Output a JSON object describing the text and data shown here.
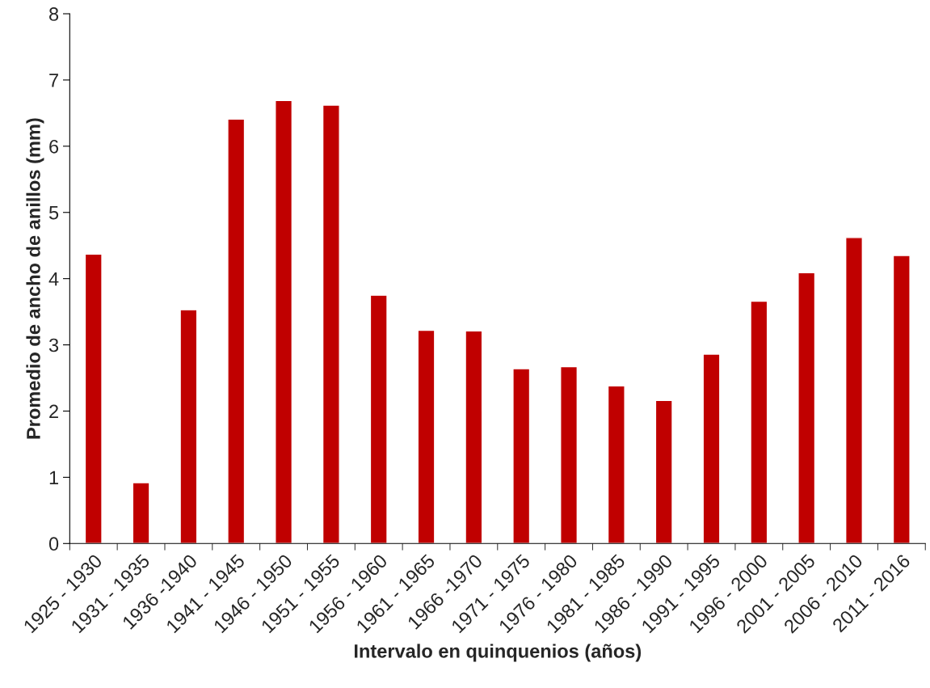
{
  "chart_data": {
    "type": "bar",
    "xlabel": "Intervalo en quinquenios (años)",
    "ylabel": "Promedio de ancho de anillos (mm)",
    "categories": [
      "1925 - 1930",
      "1931 - 1935",
      "1936 -1940",
      "1941 - 1945",
      "1946 - 1950",
      "1951 - 1955",
      "1956 - 1960",
      "1961 - 1965",
      "1966 -1970",
      "1971 - 1975",
      "1976 - 1980",
      "1981 - 1985",
      "1986 - 1990",
      "1991 - 1995",
      "1996 - 2000",
      "2001 - 2005",
      "2006 - 2010",
      "2011 - 2016"
    ],
    "values": [
      4.37,
      0.92,
      3.53,
      6.41,
      6.69,
      6.62,
      3.75,
      3.22,
      3.21,
      2.64,
      2.67,
      2.38,
      2.16,
      2.86,
      3.66,
      4.09,
      4.62,
      4.35
    ],
    "color": "#c00000",
    "ylim": [
      0,
      8
    ],
    "yticks": [
      0,
      1,
      2,
      3,
      4,
      5,
      6,
      7,
      8
    ],
    "grid": false
  }
}
